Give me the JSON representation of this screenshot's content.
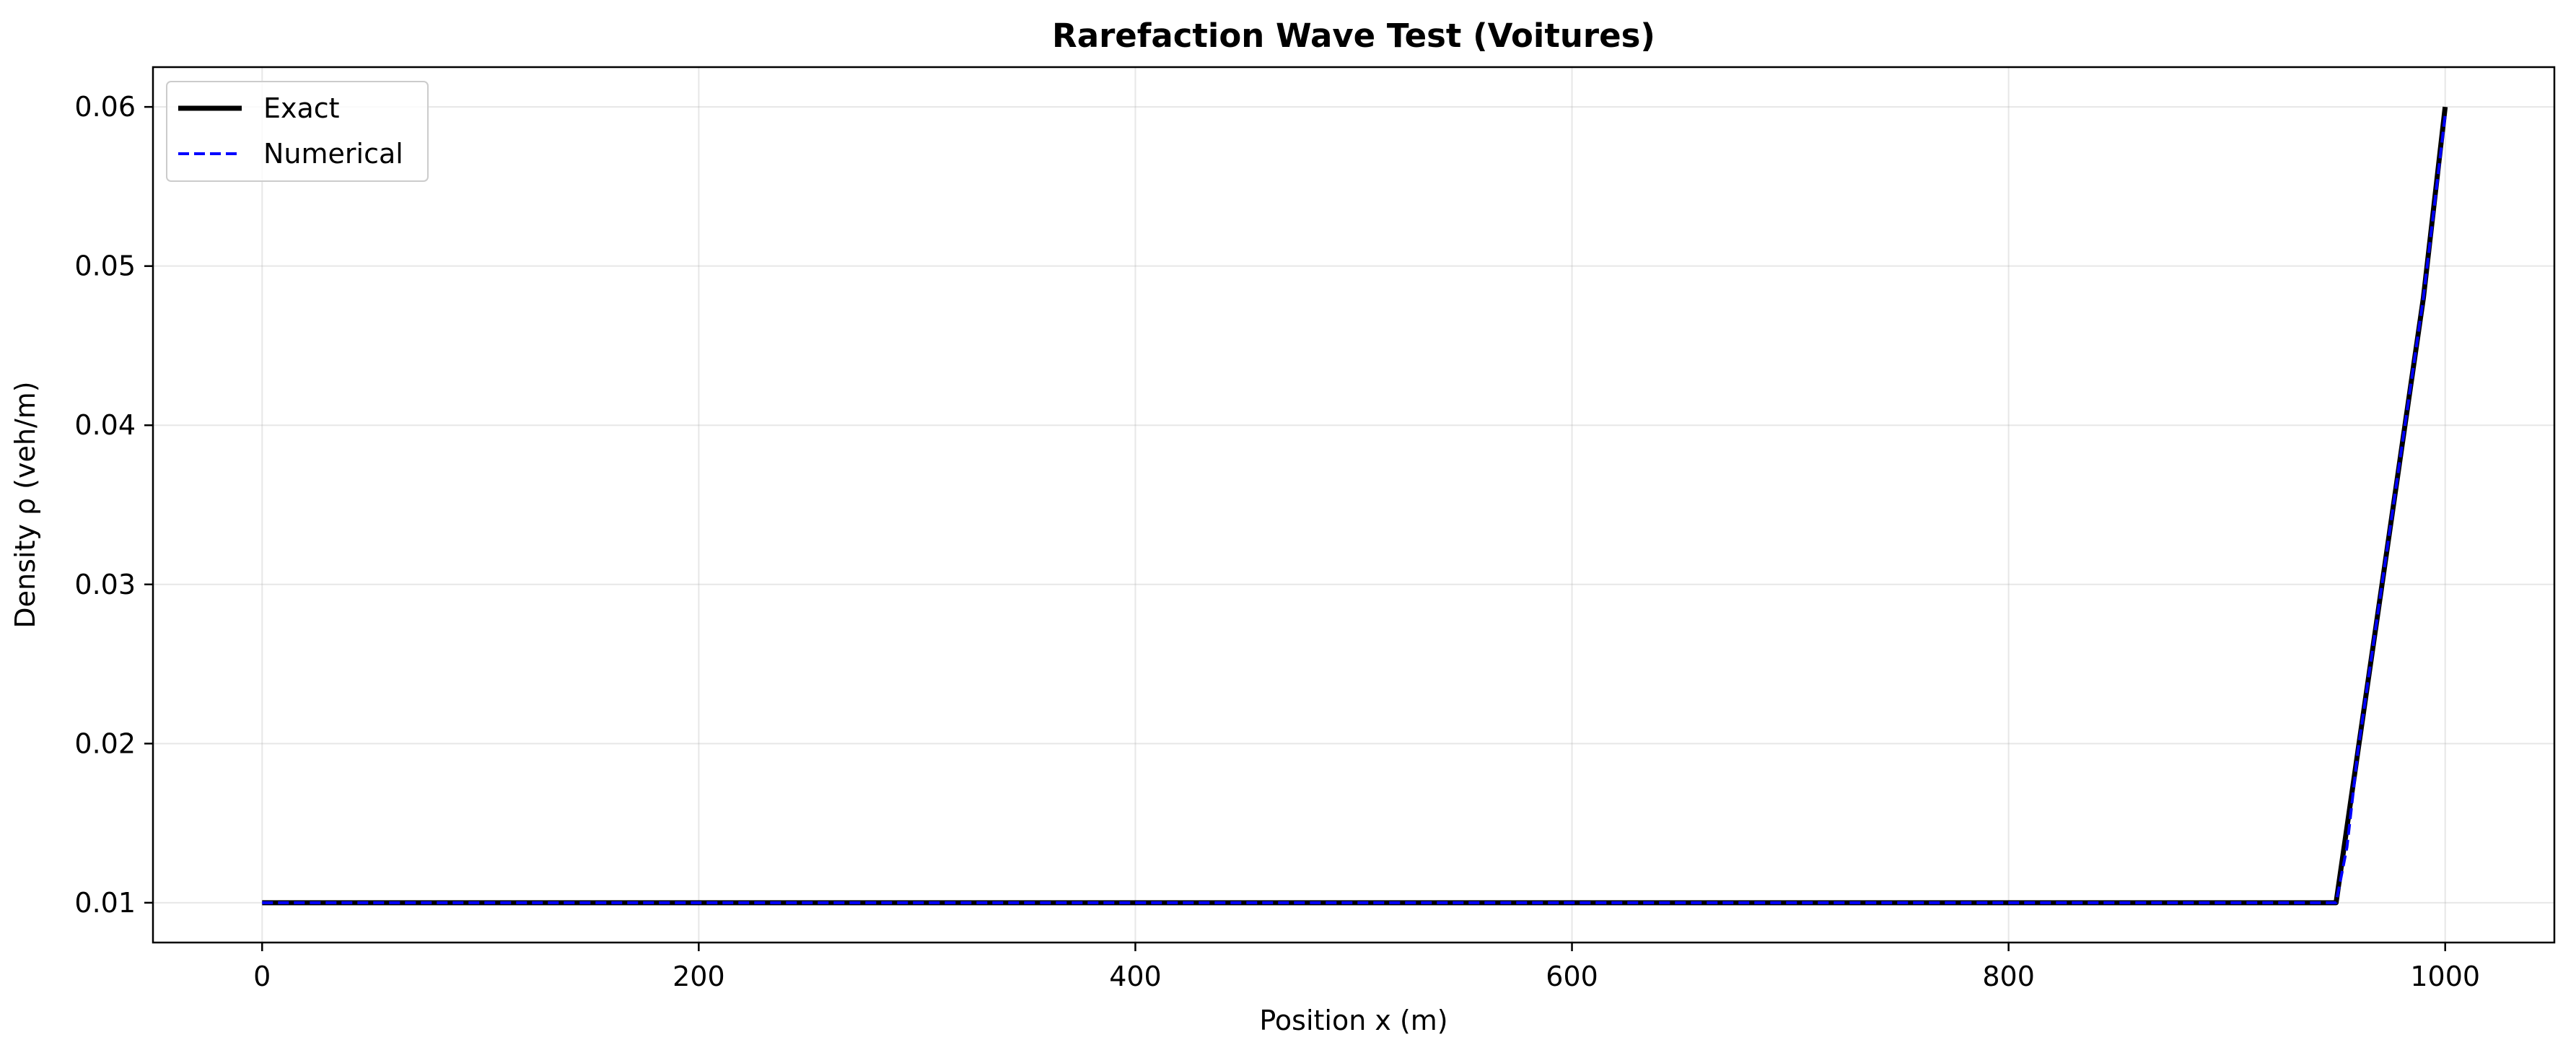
{
  "chart_data": {
    "type": "line",
    "title": "Rarefaction Wave Test (Voitures)",
    "xlabel": "Position x (m)",
    "ylabel": "Density ρ (veh/m)",
    "xlim": [
      -50,
      1050
    ],
    "ylim": [
      0.0075,
      0.0625
    ],
    "xticks": [
      0,
      200,
      400,
      600,
      800,
      1000
    ],
    "xtick_labels": [
      "0",
      "200",
      "400",
      "600",
      "800",
      "1000"
    ],
    "yticks": [
      0.01,
      0.02,
      0.03,
      0.04,
      0.05,
      0.06
    ],
    "ytick_labels": [
      "0.01",
      "0.02",
      "0.03",
      "0.04",
      "0.05",
      "0.06"
    ],
    "grid": true,
    "legend_position": "upper-left",
    "series": [
      {
        "name": "Exact",
        "color": "#000000",
        "style": "solid",
        "x": [
          0,
          100,
          200,
          300,
          400,
          500,
          600,
          700,
          800,
          900,
          950,
          960,
          970,
          980,
          990,
          1000
        ],
        "y": [
          0.01,
          0.01,
          0.01,
          0.01,
          0.01,
          0.01,
          0.01,
          0.01,
          0.01,
          0.01,
          0.01,
          0.0195,
          0.029,
          0.0385,
          0.048,
          0.06
        ]
      },
      {
        "name": "Numerical",
        "color": "#0000ff",
        "style": "dashed",
        "x": [
          0,
          100,
          200,
          300,
          400,
          500,
          600,
          700,
          800,
          900,
          950,
          955,
          960,
          970,
          980,
          990,
          1000
        ],
        "y": [
          0.01,
          0.01,
          0.01,
          0.01,
          0.01,
          0.01,
          0.01,
          0.01,
          0.01,
          0.01,
          0.01,
          0.0135,
          0.0195,
          0.029,
          0.0385,
          0.048,
          0.0595
        ]
      }
    ]
  }
}
